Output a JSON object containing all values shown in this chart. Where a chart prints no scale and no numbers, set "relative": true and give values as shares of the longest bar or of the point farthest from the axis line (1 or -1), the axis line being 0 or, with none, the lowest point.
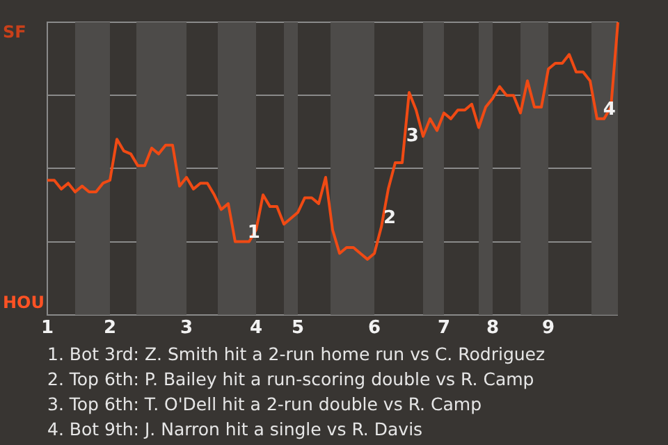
{
  "chart_data": {
    "type": "line",
    "relative": true,
    "categories": [
      "1",
      null,
      null,
      null,
      null,
      null,
      null,
      null,
      null,
      "2",
      null,
      null,
      null,
      null,
      null,
      null,
      null,
      null,
      null,
      null,
      "3",
      null,
      null,
      null,
      null,
      null,
      null,
      null,
      null,
      null,
      "4",
      null,
      null,
      null,
      null,
      null,
      "5",
      null,
      null,
      null,
      null,
      null,
      null,
      null,
      null,
      null,
      null,
      "6",
      null,
      null,
      null,
      null,
      null,
      null,
      null,
      null,
      null,
      "7",
      null,
      null,
      null,
      null,
      null,
      null,
      "8",
      null,
      null,
      null,
      null,
      null,
      null,
      null,
      "9",
      null,
      null,
      null,
      null,
      null,
      null,
      null,
      null,
      null,
      null
    ],
    "values": [
      0.46,
      0.46,
      0.43,
      0.45,
      0.42,
      0.44,
      0.42,
      0.42,
      0.45,
      0.46,
      0.6,
      0.56,
      0.55,
      0.51,
      0.51,
      0.57,
      0.55,
      0.58,
      0.58,
      0.44,
      0.47,
      0.43,
      0.45,
      0.45,
      0.41,
      0.36,
      0.38,
      0.25,
      0.25,
      0.25,
      0.29,
      0.41,
      0.37,
      0.37,
      0.31,
      0.33,
      0.35,
      0.4,
      0.4,
      0.38,
      0.47,
      0.29,
      0.21,
      0.23,
      0.23,
      0.21,
      0.19,
      0.21,
      0.3,
      0.43,
      0.52,
      0.52,
      0.76,
      0.7,
      0.61,
      0.67,
      0.63,
      0.69,
      0.67,
      0.7,
      0.7,
      0.72,
      0.64,
      0.71,
      0.74,
      0.78,
      0.75,
      0.75,
      0.69,
      0.8,
      0.71,
      0.71,
      0.84,
      0.86,
      0.86,
      0.89,
      0.83,
      0.83,
      0.8,
      0.67,
      0.67,
      0.71,
      1
    ],
    "color": "#f04a14",
    "grid": "y",
    "annotations": [
      "SF",
      "HOU",
      "1",
      "2",
      "3",
      "4",
      "1. Bot 3rd: Z. Smith hit a 2-run home run vs C. Rodriguez",
      "2. Top 6th: P. Bailey hit a run-scoring double vs R. Camp",
      "3. Top 6th: T. O'Dell hit a 2-run double vs R. Camp",
      "4. Bot 9th: J. Narron hit a single vs R. Davis"
    ]
  }
}
